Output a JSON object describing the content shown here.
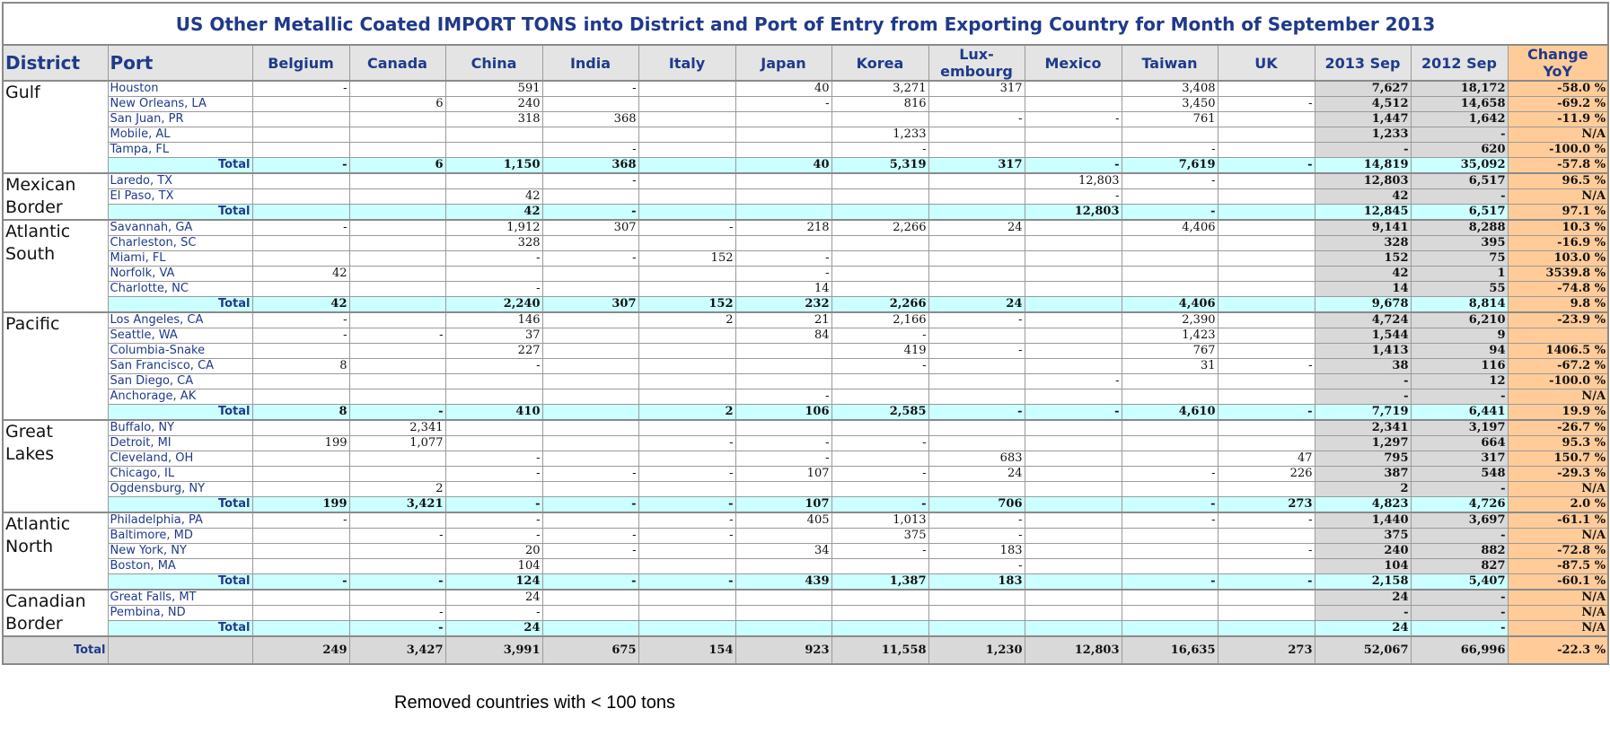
{
  "title": "US Other Metallic Coated IMPORT TONS into District and Port of Entry from Exporting Country for Month of September 2013",
  "headers": {
    "district": "District",
    "port": "Port",
    "countries": [
      "Belgium",
      "Canada",
      "China",
      "India",
      "Italy",
      "Japan",
      "Korea",
      "Lux-\nembourg",
      "Mexico",
      "Taiwan",
      "UK"
    ],
    "y2013": "2013 Sep",
    "y2012": "2012 Sep",
    "change": "Change\nYoY"
  },
  "total_label": "Total",
  "districts": [
    {
      "name": "Gulf",
      "ports": [
        {
          "name": "Houston",
          "values": [
            "-",
            "",
            "591",
            "-",
            "",
            "40",
            "3,271",
            "317",
            "",
            "3,408",
            ""
          ],
          "y2013": "7,627",
          "y2012": "18,172",
          "change": "-58.0 %"
        },
        {
          "name": "New Orleans, LA",
          "values": [
            "",
            "6",
            "240",
            "",
            "",
            "-",
            "816",
            "",
            "",
            "3,450",
            "-"
          ],
          "y2013": "4,512",
          "y2012": "14,658",
          "change": "-69.2 %"
        },
        {
          "name": "San Juan, PR",
          "values": [
            "",
            "",
            "318",
            "368",
            "",
            "",
            "",
            "-",
            "-",
            "761",
            ""
          ],
          "y2013": "1,447",
          "y2012": "1,642",
          "change": "-11.9 %"
        },
        {
          "name": "Mobile, AL",
          "values": [
            "",
            "",
            "",
            "",
            "",
            "",
            "1,233",
            "",
            "",
            "",
            ""
          ],
          "y2013": "1,233",
          "y2012": "-",
          "change": "N/A"
        },
        {
          "name": "Tampa, FL",
          "values": [
            "",
            "",
            "",
            "-",
            "",
            "",
            "-",
            "",
            "",
            "-",
            ""
          ],
          "y2013": "-",
          "y2012": "620",
          "change": "-100.0 %"
        }
      ],
      "total": {
        "values": [
          "-",
          "6",
          "1,150",
          "368",
          "",
          "40",
          "5,319",
          "317",
          "-",
          "7,619",
          "-"
        ],
        "y2013": "14,819",
        "y2012": "35,092",
        "change": "-57.8 %"
      }
    },
    {
      "name": "Mexican Border",
      "ports": [
        {
          "name": "Laredo, TX",
          "values": [
            "",
            "",
            "",
            "-",
            "",
            "",
            "",
            "",
            "12,803",
            "-",
            ""
          ],
          "y2013": "12,803",
          "y2012": "6,517",
          "change": "96.5 %"
        },
        {
          "name": "El Paso, TX",
          "values": [
            "",
            "",
            "42",
            "",
            "",
            "",
            "",
            "",
            "-",
            "",
            ""
          ],
          "y2013": "42",
          "y2012": "-",
          "change": "N/A"
        }
      ],
      "total": {
        "values": [
          "",
          "",
          "42",
          "-",
          "",
          "",
          "",
          "",
          "12,803",
          "-",
          ""
        ],
        "y2013": "12,845",
        "y2012": "6,517",
        "change": "97.1 %"
      }
    },
    {
      "name": "Atlantic South",
      "ports": [
        {
          "name": "Savannah, GA",
          "values": [
            "-",
            "",
            "1,912",
            "307",
            "-",
            "218",
            "2,266",
            "24",
            "",
            "4,406",
            ""
          ],
          "y2013": "9,141",
          "y2012": "8,288",
          "change": "10.3 %"
        },
        {
          "name": "Charleston, SC",
          "values": [
            "",
            "",
            "328",
            "",
            "",
            "",
            "",
            "",
            "",
            "",
            ""
          ],
          "y2013": "328",
          "y2012": "395",
          "change": "-16.9 %"
        },
        {
          "name": "Miami, FL",
          "values": [
            "",
            "",
            "-",
            "-",
            "152",
            "-",
            "",
            "",
            "",
            "",
            ""
          ],
          "y2013": "152",
          "y2012": "75",
          "change": "103.0 %"
        },
        {
          "name": "Norfolk, VA",
          "values": [
            "42",
            "",
            "",
            "",
            "",
            "-",
            "",
            "",
            "",
            "",
            ""
          ],
          "y2013": "42",
          "y2012": "1",
          "change": "3539.8 %"
        },
        {
          "name": "Charlotte, NC",
          "values": [
            "",
            "",
            "-",
            "",
            "",
            "14",
            "",
            "",
            "",
            "",
            ""
          ],
          "y2013": "14",
          "y2012": "55",
          "change": "-74.8 %"
        }
      ],
      "total": {
        "values": [
          "42",
          "",
          "2,240",
          "307",
          "152",
          "232",
          "2,266",
          "24",
          "",
          "4,406",
          ""
        ],
        "y2013": "9,678",
        "y2012": "8,814",
        "change": "9.8 %"
      }
    },
    {
      "name": "Pacific",
      "ports": [
        {
          "name": "Los Angeles, CA",
          "values": [
            "-",
            "",
            "146",
            "",
            "2",
            "21",
            "2,166",
            "-",
            "",
            "2,390",
            ""
          ],
          "y2013": "4,724",
          "y2012": "6,210",
          "change": "-23.9 %"
        },
        {
          "name": "Seattle, WA",
          "values": [
            "-",
            "-",
            "37",
            "",
            "",
            "84",
            "-",
            "",
            "",
            "1,423",
            ""
          ],
          "y2013": "1,544",
          "y2012": "9",
          "change": ""
        },
        {
          "name": "Columbia-Snake",
          "values": [
            "",
            "",
            "227",
            "",
            "",
            "",
            "419",
            "-",
            "",
            "767",
            ""
          ],
          "y2013": "1,413",
          "y2012": "94",
          "change": "1406.5 %"
        },
        {
          "name": "San Francisco, CA",
          "values": [
            "8",
            "",
            "-",
            "",
            "",
            "",
            "-",
            "",
            "",
            "31",
            "-"
          ],
          "y2013": "38",
          "y2012": "116",
          "change": "-67.2 %"
        },
        {
          "name": "San Diego, CA",
          "values": [
            "",
            "",
            "",
            "",
            "",
            "",
            "",
            "",
            "-",
            "",
            ""
          ],
          "y2013": "-",
          "y2012": "12",
          "change": "-100.0 %"
        },
        {
          "name": "Anchorage, AK",
          "values": [
            "",
            "",
            "",
            "",
            "",
            "-",
            "",
            "",
            "",
            "",
            ""
          ],
          "y2013": "-",
          "y2012": "-",
          "change": "N/A"
        }
      ],
      "total": {
        "values": [
          "8",
          "-",
          "410",
          "",
          "2",
          "106",
          "2,585",
          "-",
          "-",
          "4,610",
          "-"
        ],
        "y2013": "7,719",
        "y2012": "6,441",
        "change": "19.9 %"
      }
    },
    {
      "name": "Great Lakes",
      "ports": [
        {
          "name": "Buffalo, NY",
          "values": [
            "",
            "2,341",
            "",
            "",
            "",
            "",
            "",
            "",
            "",
            "",
            ""
          ],
          "y2013": "2,341",
          "y2012": "3,197",
          "change": "-26.7 %"
        },
        {
          "name": "Detroit, MI",
          "values": [
            "199",
            "1,077",
            "",
            "",
            "-",
            "-",
            "-",
            "",
            "",
            "",
            ""
          ],
          "y2013": "1,297",
          "y2012": "664",
          "change": "95.3 %"
        },
        {
          "name": "Cleveland, OH",
          "values": [
            "",
            "",
            "-",
            "",
            "",
            "-",
            "",
            "683",
            "",
            "",
            "47"
          ],
          "y2013": "795",
          "y2012": "317",
          "change": "150.7 %"
        },
        {
          "name": "Chicago, IL",
          "values": [
            "",
            "",
            "-",
            "-",
            "-",
            "107",
            "-",
            "24",
            "",
            "-",
            "226"
          ],
          "y2013": "387",
          "y2012": "548",
          "change": "-29.3 %"
        },
        {
          "name": "Ogdensburg, NY",
          "values": [
            "",
            "2",
            "",
            "",
            "",
            "",
            "",
            "",
            "",
            "",
            ""
          ],
          "y2013": "2",
          "y2012": "-",
          "change": "N/A"
        }
      ],
      "total": {
        "values": [
          "199",
          "3,421",
          "-",
          "-",
          "-",
          "107",
          "-",
          "706",
          "",
          "-",
          "273"
        ],
        "y2013": "4,823",
        "y2012": "4,726",
        "change": "2.0 %"
      }
    },
    {
      "name": "Atlantic North",
      "ports": [
        {
          "name": "Philadelphia, PA",
          "values": [
            "-",
            "",
            "-",
            "",
            "-",
            "405",
            "1,013",
            "-",
            "",
            "-",
            "-"
          ],
          "y2013": "1,440",
          "y2012": "3,697",
          "change": "-61.1 %"
        },
        {
          "name": "Baltimore, MD",
          "values": [
            "",
            "-",
            "-",
            "-",
            "-",
            "",
            "375",
            "-",
            "",
            "",
            ""
          ],
          "y2013": "375",
          "y2012": "-",
          "change": "N/A"
        },
        {
          "name": "New York, NY",
          "values": [
            "",
            "",
            "20",
            "-",
            "",
            "34",
            "-",
            "183",
            "",
            "",
            "-"
          ],
          "y2013": "240",
          "y2012": "882",
          "change": "-72.8 %"
        },
        {
          "name": "Boston, MA",
          "values": [
            "",
            "",
            "104",
            "",
            "",
            "",
            "",
            "-",
            "",
            "",
            ""
          ],
          "y2013": "104",
          "y2012": "827",
          "change": "-87.5 %"
        }
      ],
      "total": {
        "values": [
          "-",
          "-",
          "124",
          "-",
          "-",
          "439",
          "1,387",
          "183",
          "",
          "-",
          "-"
        ],
        "y2013": "2,158",
        "y2012": "5,407",
        "change": "-60.1 %"
      }
    },
    {
      "name": "Canadian Border",
      "ports": [
        {
          "name": "Great Falls, MT",
          "values": [
            "",
            "",
            "24",
            "",
            "",
            "",
            "",
            "",
            "",
            "",
            ""
          ],
          "y2013": "24",
          "y2012": "-",
          "change": "N/A"
        },
        {
          "name": "Pembina, ND",
          "values": [
            "",
            "-",
            "-",
            "",
            "",
            "",
            "",
            "",
            "",
            "",
            ""
          ],
          "y2013": "-",
          "y2012": "-",
          "change": "N/A"
        }
      ],
      "total": {
        "values": [
          "",
          "-",
          "24",
          "",
          "",
          "",
          "",
          "",
          "",
          "",
          ""
        ],
        "y2013": "24",
        "y2012": "-",
        "change": "N/A"
      }
    }
  ],
  "grand_total": {
    "label": "Total",
    "values": [
      "249",
      "3,427",
      "3,991",
      "675",
      "154",
      "923",
      "11,558",
      "1,230",
      "12,803",
      "16,635",
      "273"
    ],
    "y2013": "52,067",
    "y2012": "66,996",
    "change": "-22.3 %"
  },
  "note": "Removed countries with < 100 tons"
}
